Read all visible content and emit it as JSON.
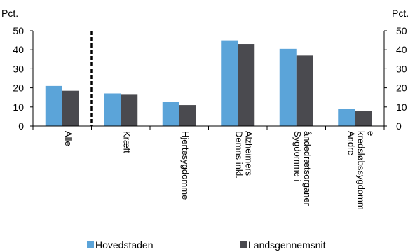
{
  "chart_data": {
    "type": "bar",
    "categories": [
      "Alle",
      "Kræft",
      "Hjertesygdomme",
      "Demns inkl. Alzheimers",
      "Sygdomme i åndedrætsorganer",
      "Andre kredsløbssygdomme"
    ],
    "category_label_lines": [
      [
        "Alle"
      ],
      [
        "Kræft"
      ],
      [
        "Hjertesygdomme"
      ],
      [
        "Demns inkl.",
        "Alzheimers"
      ],
      [
        "Sygdomme i",
        "åndedrætsorganer"
      ],
      [
        "Andre",
        "kredsløbssygdomm",
        "e"
      ]
    ],
    "series": [
      {
        "name": "Hovedstaden",
        "values": [
          21,
          17.1,
          12.8,
          45,
          40.5,
          9.1
        ],
        "color": "#5BA4D9"
      },
      {
        "name": "Landsgennemsnit",
        "values": [
          18.5,
          16.4,
          11,
          43,
          37,
          7.8
        ],
        "color": "#4A4A4F"
      }
    ],
    "ylabel_left": "Pct.",
    "ylabel_right": "Pct.",
    "ylim": [
      0,
      50
    ],
    "yticks": [
      0,
      10,
      20,
      30,
      40,
      50
    ],
    "grid": false,
    "separator_after_category": 1,
    "legend_position": "bottom"
  }
}
